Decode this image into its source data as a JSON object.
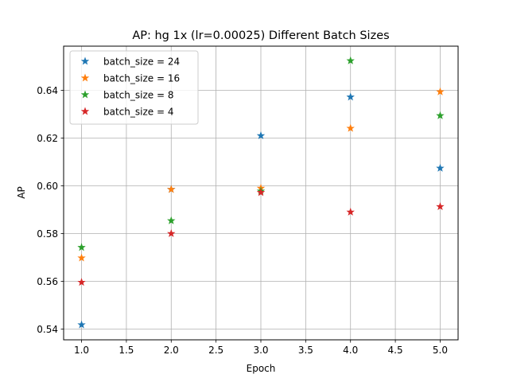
{
  "chart_data": {
    "type": "scatter",
    "title": "AP: hg 1x (lr=0.00025) Different Batch Sizes",
    "xlabel": "Epoch",
    "ylabel": "AP",
    "xlim": [
      0.8,
      5.2
    ],
    "ylim": [
      0.5355,
      0.6585
    ],
    "xticks": [
      "1.0",
      "1.5",
      "2.0",
      "2.5",
      "3.0",
      "3.5",
      "4.0",
      "4.5",
      "5.0"
    ],
    "xtick_values": [
      1.0,
      1.5,
      2.0,
      2.5,
      3.0,
      3.5,
      4.0,
      4.5,
      5.0
    ],
    "yticks": [
      "0.54",
      "0.56",
      "0.58",
      "0.60",
      "0.62",
      "0.64"
    ],
    "ytick_values": [
      0.54,
      0.56,
      0.58,
      0.6,
      0.62,
      0.64
    ],
    "grid": true,
    "legend_position": "top-left",
    "marker": "star",
    "series": [
      {
        "name": "batch_size = 24",
        "color": "#1f77b4",
        "x": [
          1,
          2,
          3,
          4,
          5
        ],
        "y": [
          0.5418,
          0.5985,
          0.621,
          0.6372,
          0.6074
        ]
      },
      {
        "name": "batch_size = 16",
        "color": "#ff7f0e",
        "x": [
          1,
          2,
          3,
          4,
          5
        ],
        "y": [
          0.5698,
          0.5985,
          0.599,
          0.6241,
          0.6394
        ]
      },
      {
        "name": "batch_size = 8",
        "color": "#2ca02c",
        "x": [
          1,
          2,
          3,
          4,
          5
        ],
        "y": [
          0.5742,
          0.5854,
          0.5978,
          0.6524,
          0.6294
        ]
      },
      {
        "name": "batch_size = 4",
        "color": "#d62728",
        "x": [
          1,
          2,
          3,
          4,
          5
        ],
        "y": [
          0.5596,
          0.58,
          0.5972,
          0.589,
          0.5913
        ]
      }
    ]
  }
}
